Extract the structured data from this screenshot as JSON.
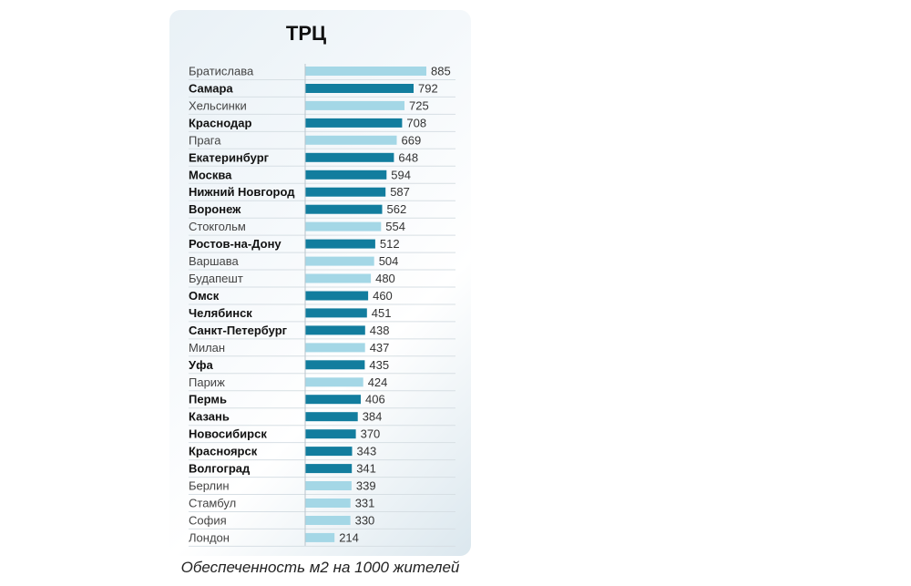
{
  "chart_data": {
    "type": "bar",
    "orientation": "horizontal",
    "title": "ТРЦ",
    "xlabel": "Обеспеченность м2 на 1000 жителей",
    "xlim": [
      0,
      885
    ],
    "grid": false,
    "colors": {
      "highlight": "#127d9e",
      "other": "#a4d7e6"
    },
    "categories": [
      "Братислава",
      "Самара",
      "Хельсинки",
      "Краснодар",
      "Прага",
      "Екатеринбург",
      "Москва",
      "Нижний Новгород",
      "Воронеж",
      "Стокгольм",
      "Ростов-на-Дону",
      "Варшава",
      "Будапешт",
      "Омск",
      "Челябинск",
      "Санкт-Петербург",
      "Милан",
      "Уфа",
      "Париж",
      "Пермь",
      "Казань",
      "Новосибирск",
      "Красноярск",
      "Волгоград",
      "Берлин",
      "Стамбул",
      "София",
      "Лондон"
    ],
    "values": [
      885,
      792,
      725,
      708,
      669,
      648,
      594,
      587,
      562,
      554,
      512,
      504,
      480,
      460,
      451,
      438,
      437,
      435,
      424,
      406,
      384,
      370,
      343,
      341,
      339,
      331,
      330,
      214
    ],
    "highlighted": [
      false,
      true,
      false,
      true,
      false,
      true,
      true,
      true,
      true,
      false,
      true,
      false,
      false,
      true,
      true,
      true,
      false,
      true,
      false,
      true,
      true,
      true,
      true,
      true,
      false,
      false,
      false,
      false
    ]
  }
}
